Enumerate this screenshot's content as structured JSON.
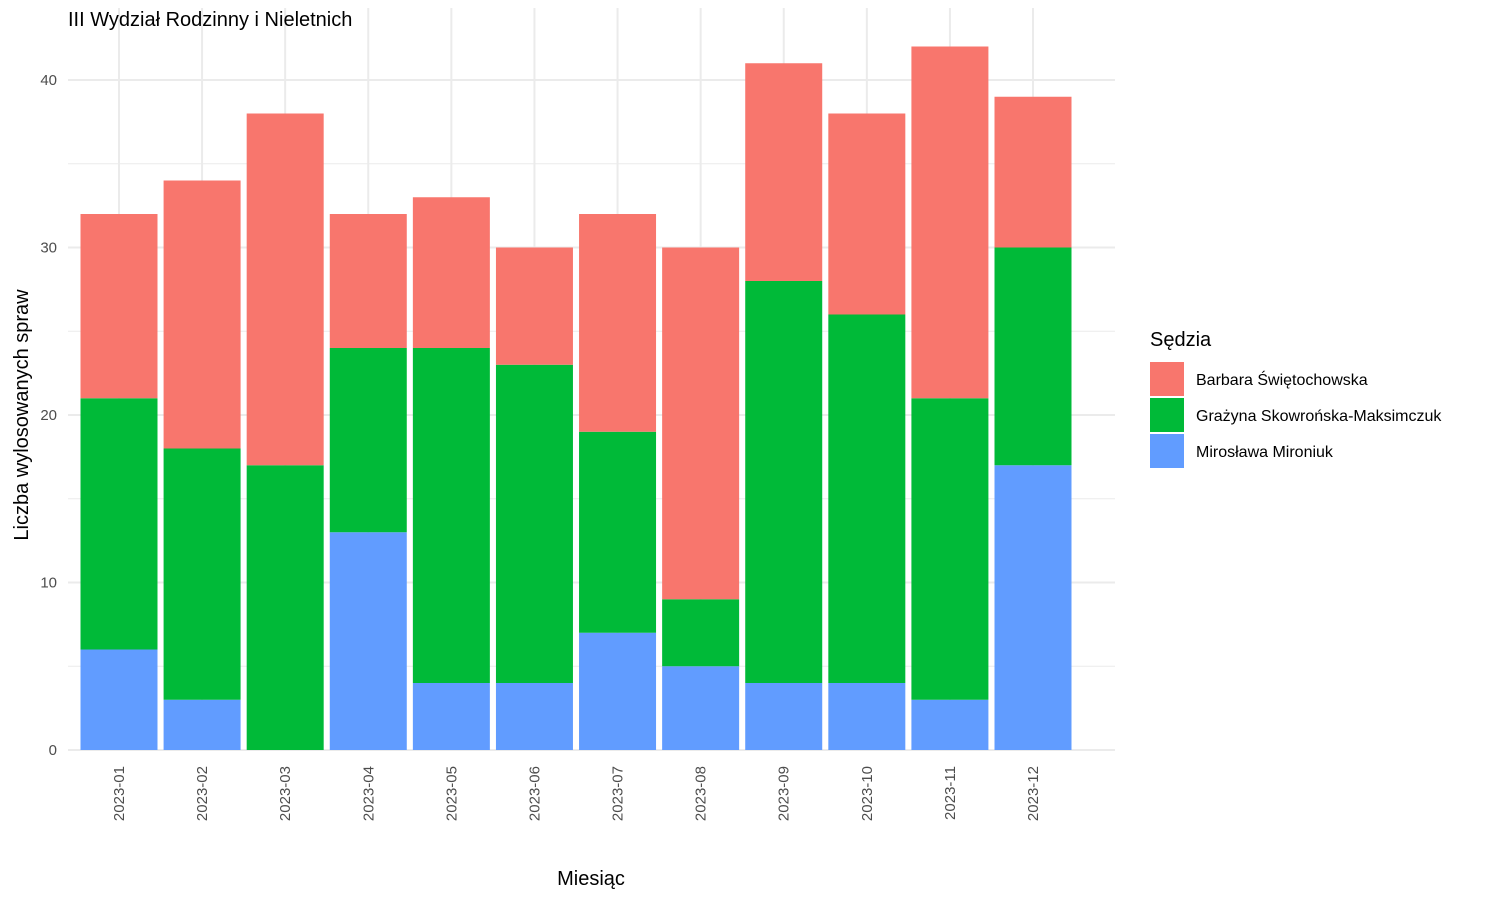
{
  "chart_data": {
    "type": "bar",
    "stacked": true,
    "title": "III Wydział Rodzinny i Nieletnich",
    "xlabel": "Miesiąc",
    "ylabel": "Liczba wylosowanych spraw",
    "ylim": [
      0,
      43
    ],
    "yticks": [
      0,
      10,
      20,
      30,
      40
    ],
    "grid": true,
    "legend_title": "Sędzia",
    "legend_position": "right",
    "categories": [
      "2023-01",
      "2023-02",
      "2023-03",
      "2023-04",
      "2023-05",
      "2023-06",
      "2023-07",
      "2023-08",
      "2023-09",
      "2023-10",
      "2023-11",
      "2023-12"
    ],
    "series": [
      {
        "name": "Mirosława Mironiuk",
        "color": "#619CFF",
        "values": [
          6,
          3,
          0,
          13,
          4,
          4,
          7,
          5,
          4,
          4,
          3,
          17
        ]
      },
      {
        "name": "Grażyna Skowrońska-Maksimczuk",
        "color": "#00BA38",
        "values": [
          15,
          15,
          17,
          11,
          20,
          19,
          12,
          4,
          24,
          22,
          18,
          13
        ]
      },
      {
        "name": "Barbara Świętochowska",
        "color": "#F8766D",
        "values": [
          11,
          16,
          21,
          8,
          9,
          7,
          13,
          21,
          13,
          12,
          21,
          9
        ]
      }
    ],
    "legend_order": [
      "Barbara Świętochowska",
      "Grażyna Skowrońska-Maksimczuk",
      "Mirosława Mironiuk"
    ],
    "gridline_color": "#ebebeb"
  }
}
